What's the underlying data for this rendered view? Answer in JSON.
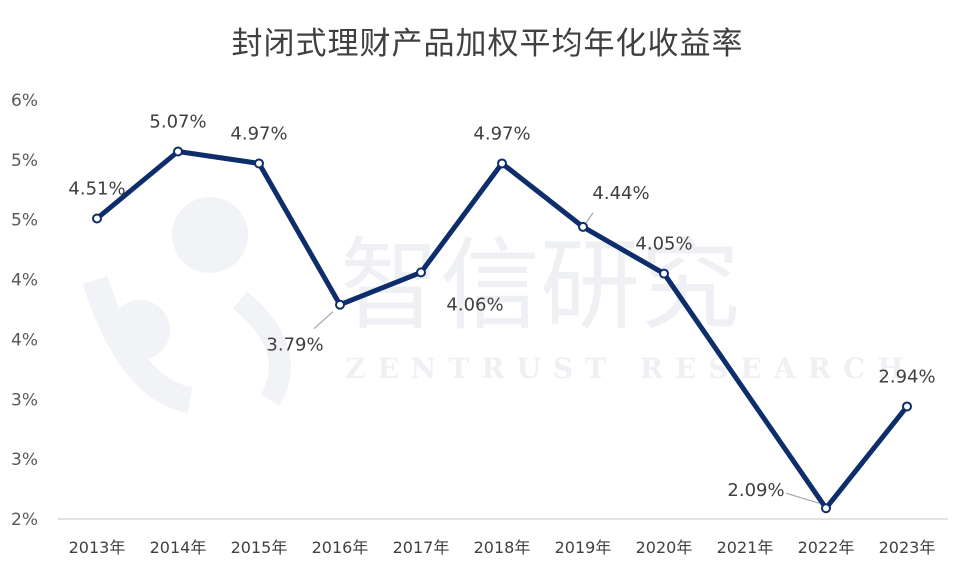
{
  "chart_data": {
    "type": "line",
    "title": "封闭式理财产品加权平均年化收益率",
    "categories": [
      "2013年",
      "2014年",
      "2015年",
      "2016年",
      "2017年",
      "2018年",
      "2019年",
      "2020年",
      "2021年",
      "2022年",
      "2023年"
    ],
    "series": [
      {
        "values": [
          4.51,
          5.07,
          4.97,
          3.79,
          4.06,
          4.97,
          4.44,
          4.05,
          null,
          2.09,
          2.94
        ],
        "data_labels": [
          "4.51%",
          "5.07%",
          "4.97%",
          "3.79%",
          "4.06%",
          "4.97%",
          "4.44%",
          "4.05%",
          "",
          "2.09%",
          "2.94%"
        ],
        "color": "#0d2d6b"
      }
    ],
    "y_tick_labels": [
      "2%",
      "3%",
      "3%",
      "4%",
      "4%",
      "5%",
      "5%",
      "6%"
    ],
    "ylim": [
      2,
      5.5
    ],
    "xlabel": "",
    "ylabel": "",
    "grid": false,
    "legend": "none"
  },
  "watermark": {
    "chinese": "智信研究",
    "english": "ZENTRUST RESEARCH"
  }
}
